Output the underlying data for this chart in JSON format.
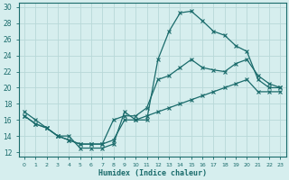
{
  "xlabel": "Humidex (Indice chaleur)",
  "bg_color": "#d6eeee",
  "grid_color": "#b8d8d8",
  "line_color": "#1a6b6b",
  "xlim": [
    -0.5,
    23.5
  ],
  "ylim": [
    11.5,
    30.5
  ],
  "xticks": [
    0,
    1,
    2,
    3,
    4,
    5,
    6,
    7,
    8,
    9,
    10,
    11,
    12,
    13,
    14,
    15,
    16,
    17,
    18,
    19,
    20,
    21,
    22,
    23
  ],
  "yticks": [
    12,
    14,
    16,
    18,
    20,
    22,
    24,
    26,
    28,
    30
  ],
  "line1_x": [
    0,
    1,
    2,
    3,
    4,
    5,
    6,
    7,
    8,
    9,
    10,
    11,
    12,
    13,
    14,
    15,
    16,
    17,
    18,
    19,
    20,
    21,
    22,
    23
  ],
  "line1_y": [
    17,
    16,
    15,
    14,
    14,
    12.5,
    12.5,
    12.5,
    13,
    17,
    16,
    16,
    23.5,
    27,
    29.3,
    29.5,
    28.3,
    27,
    26.5,
    25.2,
    24.5,
    21,
    20,
    20
  ],
  "line2_x": [
    0,
    1,
    2,
    3,
    4,
    5,
    6,
    7,
    8,
    9,
    10,
    11,
    12,
    13,
    14,
    15,
    16,
    17,
    18,
    19,
    20,
    21,
    22,
    23
  ],
  "line2_y": [
    16.5,
    15.5,
    15,
    14,
    13.5,
    13,
    13,
    13,
    16,
    16.5,
    16.5,
    17.5,
    21,
    21.5,
    22.5,
    23.5,
    22.5,
    22.2,
    22,
    23,
    23.5,
    21.5,
    20.5,
    20
  ],
  "line3_x": [
    0,
    1,
    2,
    3,
    4,
    5,
    6,
    7,
    8,
    9,
    10,
    11,
    12,
    13,
    14,
    15,
    16,
    17,
    18,
    19,
    20,
    21,
    22,
    23
  ],
  "line3_y": [
    16.5,
    15.5,
    15,
    14,
    13.5,
    13,
    13,
    13,
    13.5,
    16,
    16,
    16.5,
    17,
    17.5,
    18,
    18.5,
    19,
    19.5,
    20,
    20.5,
    21,
    19.5,
    19.5,
    19.5
  ]
}
